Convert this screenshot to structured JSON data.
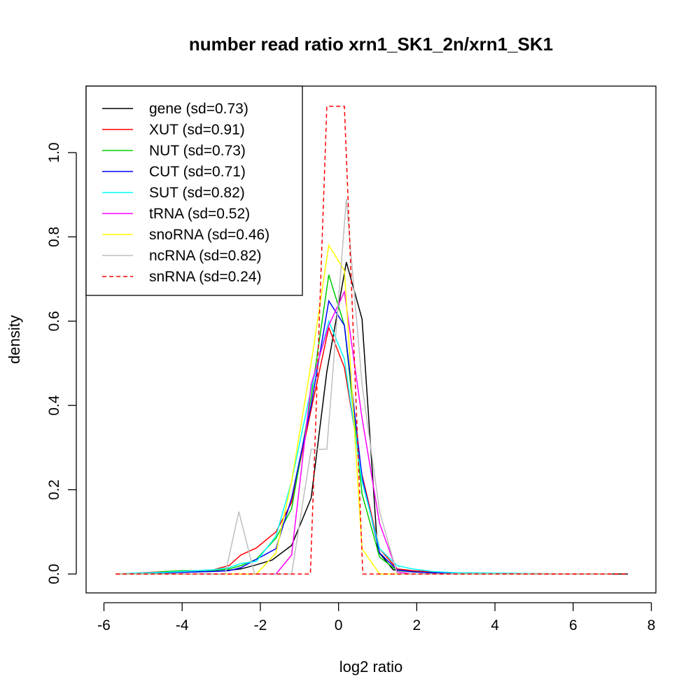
{
  "chart_data": {
    "type": "line",
    "title": "number read ratio xrn1_SK1_2n/xrn1_SK1",
    "xlabel": "log2 ratio",
    "ylabel": "density",
    "xlim": [
      -6,
      8
    ],
    "ylim": [
      0,
      1.1
    ],
    "xticks": [
      "-6",
      "-4",
      "-2",
      "0",
      "2",
      "4",
      "6",
      "8"
    ],
    "yticks": [
      "0.0",
      "0.2",
      "0.4",
      "0.6",
      "0.8",
      "1.0"
    ],
    "grid": false,
    "legend_position": "top-left",
    "series": [
      {
        "name": "gene (sd=0.73)",
        "color": "#000000",
        "dash": "solid",
        "x": [
          -5.7,
          -5.3,
          -4.9,
          -4.5,
          -4.1,
          -3.7,
          -3.3,
          -2.9,
          -2.5,
          -2.1,
          -1.7,
          -1.2,
          -0.7,
          -0.3,
          0.2,
          0.6,
          1.0,
          1.4,
          1.9,
          2.3,
          2.8,
          3.5,
          4.5,
          5.5,
          6.5,
          7.4
        ],
        "y": [
          0.0,
          0.0,
          0.002,
          0.003,
          0.004,
          0.005,
          0.006,
          0.008,
          0.012,
          0.022,
          0.033,
          0.068,
          0.18,
          0.48,
          0.74,
          0.605,
          0.055,
          0.01,
          0.006,
          0.004,
          0.003,
          0.002,
          0.001,
          0.0,
          0.0,
          0.0
        ]
      },
      {
        "name": "XUT (sd=0.91)",
        "color": "#ff0000",
        "dash": "solid",
        "x": [
          -5.7,
          -5.2,
          -4.8,
          -4.4,
          -4.0,
          -3.6,
          -3.2,
          -2.8,
          -2.5,
          -2.1,
          -1.6,
          -1.2,
          -0.7,
          -0.25,
          0.15,
          0.6,
          1.05,
          1.5,
          1.9,
          2.4,
          3.0,
          4.0,
          5.0,
          6.0,
          7.0
        ],
        "y": [
          0.0,
          0.002,
          0.004,
          0.006,
          0.007,
          0.008,
          0.01,
          0.02,
          0.045,
          0.062,
          0.1,
          0.17,
          0.39,
          0.585,
          0.49,
          0.235,
          0.06,
          0.012,
          0.008,
          0.005,
          0.003,
          0.002,
          0.001,
          0.0,
          0.0
        ]
      },
      {
        "name": "NUT (sd=0.73)",
        "color": "#00cd00",
        "dash": "solid",
        "x": [
          -5.7,
          -5.2,
          -4.8,
          -4.4,
          -4.0,
          -3.6,
          -3.2,
          -2.8,
          -2.5,
          -2.1,
          -1.6,
          -1.2,
          -0.7,
          -0.25,
          0.15,
          0.6,
          1.05,
          1.5,
          1.9,
          2.4,
          3.0,
          4.0,
          5.0,
          6.0,
          7.0
        ],
        "y": [
          0.0,
          0.001,
          0.003,
          0.006,
          0.008,
          0.008,
          0.009,
          0.012,
          0.02,
          0.035,
          0.085,
          0.155,
          0.42,
          0.71,
          0.59,
          0.19,
          0.04,
          0.008,
          0.005,
          0.003,
          0.002,
          0.001,
          0.0,
          0.0,
          0.0
        ]
      },
      {
        "name": "CUT (sd=0.71)",
        "color": "#0000ff",
        "dash": "solid",
        "x": [
          -5.7,
          -5.2,
          -4.8,
          -4.4,
          -4.0,
          -3.6,
          -3.2,
          -2.8,
          -2.5,
          -2.1,
          -1.6,
          -1.2,
          -0.7,
          -0.25,
          0.15,
          0.6,
          1.05,
          1.5,
          1.9,
          2.4,
          3.0,
          4.0,
          5.0,
          6.0,
          7.0
        ],
        "y": [
          0.0,
          0.001,
          0.002,
          0.003,
          0.004,
          0.005,
          0.006,
          0.008,
          0.015,
          0.035,
          0.06,
          0.18,
          0.4,
          0.648,
          0.59,
          0.23,
          0.05,
          0.01,
          0.005,
          0.003,
          0.002,
          0.001,
          0.0,
          0.0,
          0.0
        ]
      },
      {
        "name": "SUT (sd=0.82)",
        "color": "#00ffff",
        "dash": "solid",
        "x": [
          -5.7,
          -5.2,
          -4.8,
          -4.4,
          -4.0,
          -3.6,
          -3.2,
          -2.8,
          -2.5,
          -2.1,
          -1.6,
          -1.2,
          -0.7,
          -0.25,
          0.15,
          0.6,
          1.05,
          1.5,
          1.9,
          2.4,
          3.0,
          4.0,
          5.0,
          6.0,
          7.0
        ],
        "y": [
          0.0,
          0.002,
          0.003,
          0.004,
          0.006,
          0.008,
          0.01,
          0.015,
          0.025,
          0.03,
          0.09,
          0.22,
          0.44,
          0.6,
          0.51,
          0.22,
          0.06,
          0.02,
          0.012,
          0.006,
          0.003,
          0.002,
          0.001,
          0.0,
          0.0
        ]
      },
      {
        "name": "tRNA (sd=0.52)",
        "color": "#ff00ff",
        "dash": "solid",
        "x": [
          -5.7,
          -5.2,
          -4.8,
          -4.4,
          -4.0,
          -3.6,
          -3.2,
          -2.8,
          -2.5,
          -2.1,
          -1.6,
          -1.2,
          -0.7,
          -0.25,
          0.15,
          0.6,
          1.05,
          1.5,
          1.9,
          2.4,
          3.0,
          4.0,
          5.0,
          6.0,
          7.0
        ],
        "y": [
          0.0,
          0.0,
          0.0,
          0.0,
          0.0,
          0.0,
          0.0,
          0.0,
          0.0,
          0.0,
          0.0,
          0.045,
          0.45,
          0.59,
          0.67,
          0.37,
          0.12,
          0.005,
          0.0,
          0.0,
          0.0,
          0.0,
          0.0,
          0.0,
          0.0
        ]
      },
      {
        "name": "snoRNA (sd=0.46)",
        "color": "#ffff00",
        "dash": "solid",
        "x": [
          -5.7,
          -5.2,
          -4.8,
          -4.4,
          -4.0,
          -3.6,
          -3.2,
          -2.8,
          -2.5,
          -2.1,
          -1.6,
          -1.2,
          -0.7,
          -0.25,
          0.15,
          0.6,
          1.05,
          1.5,
          1.9,
          2.4,
          3.0,
          4.0,
          5.0,
          6.0,
          7.0
        ],
        "y": [
          0.0,
          0.0,
          0.0,
          0.0,
          0.0,
          0.0,
          0.0,
          0.0,
          0.0,
          0.0,
          0.05,
          0.22,
          0.5,
          0.78,
          0.72,
          0.06,
          0.0,
          0.0,
          0.0,
          0.0,
          0.0,
          0.0,
          0.0,
          0.0,
          0.0
        ]
      },
      {
        "name": "ncRNA (sd=0.82)",
        "color": "#bebebe",
        "dash": "solid",
        "x": [
          -5.7,
          -5.2,
          -4.8,
          -4.4,
          -4.0,
          -3.6,
          -3.2,
          -2.9,
          -2.55,
          -2.15,
          -1.7,
          -1.2,
          -0.7,
          -0.3,
          0.2,
          0.6,
          1.05,
          1.5,
          1.9,
          2.4,
          3.0,
          4.0,
          5.0,
          6.0,
          7.0
        ],
        "y": [
          0.0,
          0.0,
          0.0,
          0.0,
          0.0,
          0.0,
          0.0,
          0.0,
          0.148,
          0.0,
          0.0,
          0.0,
          0.296,
          0.296,
          0.89,
          0.45,
          0.148,
          0.0,
          0.0,
          0.0,
          0.0,
          0.0,
          0.0,
          0.0,
          0.0
        ]
      },
      {
        "name": "snRNA (sd=0.24)",
        "color": "#ff0000",
        "dash": "dashed",
        "x": [
          -5.7,
          -4.0,
          -2.0,
          -1.0,
          -0.72,
          -0.3,
          0.15,
          0.62,
          1.0,
          2.0,
          4.0,
          6.0,
          7.4
        ],
        "y": [
          0.0,
          0.0,
          0.0,
          0.0,
          0.0,
          1.11,
          1.11,
          0.0,
          0.0,
          0.0,
          0.0,
          0.0,
          0.0
        ]
      }
    ]
  }
}
